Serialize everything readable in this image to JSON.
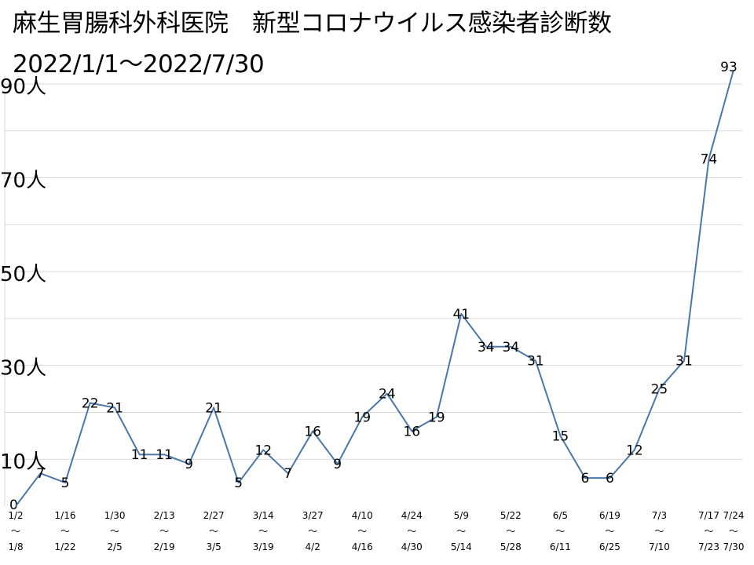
{
  "header": {
    "title": "麻生胃腸科外科医院　新型コロナウイルス感染者診断数",
    "subtitle": "2022/1/1～2022/7/30"
  },
  "chart_data": {
    "type": "line",
    "title": "麻生胃腸科外科医院　新型コロナウイルス感染者診断数",
    "subtitle": "2022/1/1～2022/7/30",
    "xlabel": "",
    "ylabel": "",
    "ylim": [
      0,
      90
    ],
    "grid": true,
    "y_ticks": [
      {
        "value": 0,
        "label": "0"
      },
      {
        "value": 10,
        "label": "10人"
      },
      {
        "value": 30,
        "label": "30人"
      },
      {
        "value": 50,
        "label": "50人"
      },
      {
        "value": 70,
        "label": "70人"
      },
      {
        "value": 90,
        "label": "90人"
      }
    ],
    "x_ticks": [
      {
        "index": 0,
        "start": "1/2",
        "end": "1/8"
      },
      {
        "index": 2,
        "start": "1/16",
        "end": "1/22"
      },
      {
        "index": 4,
        "start": "1/30",
        "end": "2/5"
      },
      {
        "index": 6,
        "start": "2/13",
        "end": "2/19"
      },
      {
        "index": 8,
        "start": "2/27",
        "end": "3/5"
      },
      {
        "index": 10,
        "start": "3/14",
        "end": "3/19"
      },
      {
        "index": 12,
        "start": "3/27",
        "end": "4/2"
      },
      {
        "index": 14,
        "start": "4/10",
        "end": "4/16"
      },
      {
        "index": 16,
        "start": "4/24",
        "end": "4/30"
      },
      {
        "index": 18,
        "start": "5/9",
        "end": "5/14"
      },
      {
        "index": 20,
        "start": "5/22",
        "end": "5/28"
      },
      {
        "index": 22,
        "start": "6/5",
        "end": "6/11"
      },
      {
        "index": 24,
        "start": "6/19",
        "end": "6/25"
      },
      {
        "index": 26,
        "start": "7/3",
        "end": "7/10"
      },
      {
        "index": 28,
        "start": "7/17",
        "end": "7/23"
      },
      {
        "index": 29,
        "start": "7/24",
        "end": "7/30"
      }
    ],
    "series": [
      {
        "color": "#4a77a8",
        "values": [
          0,
          7,
          5,
          22,
          21,
          11,
          11,
          9,
          21,
          5,
          12,
          7,
          16,
          9,
          19,
          24,
          16,
          19,
          41,
          34,
          34,
          31,
          15,
          6,
          6,
          12,
          25,
          31,
          74,
          93
        ]
      }
    ],
    "gridline_color": "#d9d9d9",
    "tilde": "～"
  }
}
